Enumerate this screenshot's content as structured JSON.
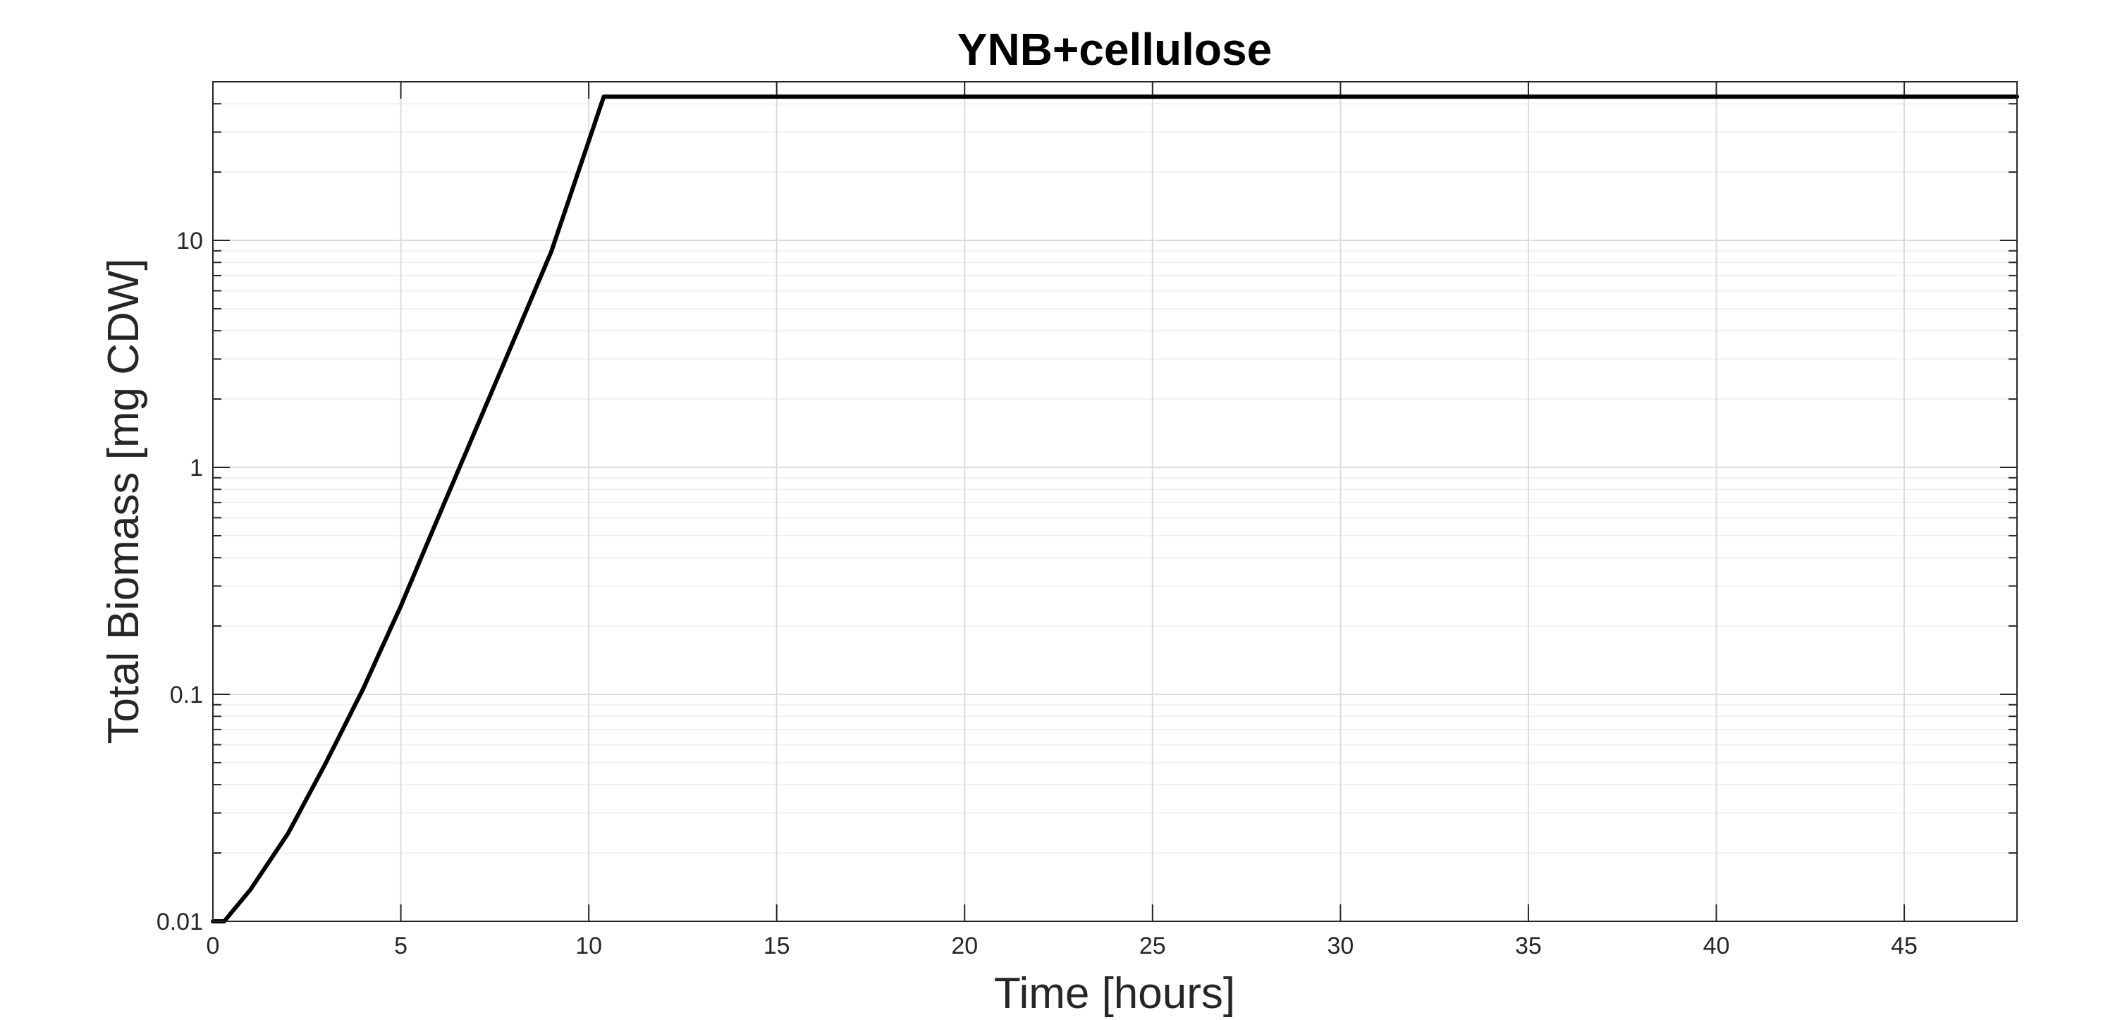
{
  "chart_data": {
    "type": "line",
    "title": "YNB+cellulose",
    "xlabel": "Time [hours]",
    "ylabel": "Total Biomass [mg CDW]",
    "xlim": [
      0,
      48
    ],
    "ylim": [
      0.01,
      50
    ],
    "yscale": "log",
    "grid": true,
    "minor_grid": true,
    "x_ticks": [
      0,
      5,
      10,
      15,
      20,
      25,
      30,
      35,
      40,
      45
    ],
    "x_tick_labels": [
      "0",
      "5",
      "10",
      "15",
      "20",
      "25",
      "30",
      "35",
      "40",
      "45"
    ],
    "y_ticks": [
      0.01,
      0.1,
      1,
      10
    ],
    "y_tick_labels": [
      "0.01",
      "0.1",
      "1",
      "10"
    ],
    "series": [
      {
        "color": "#000000",
        "x": [
          0,
          0.3,
          1,
          2,
          3,
          4,
          5,
          6,
          7,
          8,
          9,
          10.4,
          15,
          20,
          25,
          30,
          35,
          40,
          45,
          48
        ],
        "y": [
          0.01,
          0.01,
          0.0138,
          0.0244,
          0.0497,
          0.106,
          0.245,
          0.605,
          1.48,
          3.62,
          8.9,
          43,
          43,
          43,
          43,
          43,
          43,
          43,
          43,
          43
        ]
      }
    ]
  }
}
